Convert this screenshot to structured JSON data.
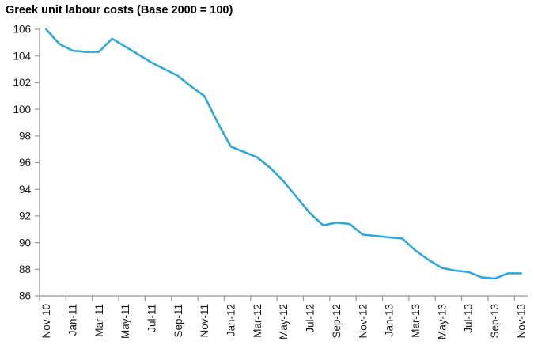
{
  "title": "Greek unit labour costs (Base 2000 = 100)",
  "chart_data": {
    "type": "line",
    "title": "Greek unit labour costs (Base 2000 = 100)",
    "x": [
      "Nov-10",
      "Dec-10",
      "Jan-11",
      "Feb-11",
      "Mar-11",
      "Apr-11",
      "May-11",
      "Jun-11",
      "Jul-11",
      "Aug-11",
      "Sep-11",
      "Oct-11",
      "Nov-11",
      "Dec-11",
      "Jan-12",
      "Feb-12",
      "Mar-12",
      "Apr-12",
      "May-12",
      "Jun-12",
      "Jul-12",
      "Aug-12",
      "Sep-12",
      "Oct-12",
      "Nov-12",
      "Dec-12",
      "Jan-13",
      "Feb-13",
      "Mar-13",
      "Apr-13",
      "May-13",
      "Jun-13",
      "Jul-13",
      "Aug-13",
      "Sep-13",
      "Oct-13",
      "Nov-13"
    ],
    "values": [
      106.0,
      104.9,
      104.4,
      104.3,
      104.3,
      105.3,
      104.7,
      104.1,
      103.5,
      103.0,
      102.5,
      101.7,
      101.0,
      99.0,
      97.2,
      96.8,
      96.4,
      95.6,
      94.6,
      93.4,
      92.2,
      91.3,
      91.5,
      91.4,
      90.6,
      90.5,
      90.4,
      90.3,
      89.4,
      88.7,
      88.1,
      87.9,
      87.8,
      87.4,
      87.3,
      87.7,
      87.7
    ],
    "x_label_interval": 2,
    "xlabel": "",
    "ylabel": "",
    "ylim": [
      86,
      106
    ],
    "y_ticks": [
      86,
      88,
      90,
      92,
      94,
      96,
      98,
      100,
      102,
      104,
      106
    ],
    "grid": false,
    "legend_position": "none",
    "line_color": "#2BA9DF",
    "axis_color": "#969696",
    "label_color": "#1A1A1A"
  }
}
